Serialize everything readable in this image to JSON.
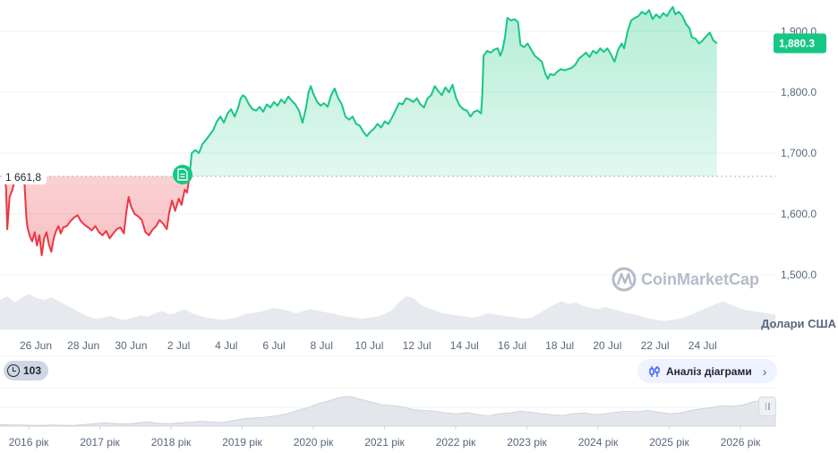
{
  "chart_data": {
    "type": "area",
    "baseline_value": 1661.8,
    "baseline_label": "1 661,8",
    "current_value": 1880.3,
    "current_label": "1,880.3",
    "ylim": [
      1480,
      1930
    ],
    "y_ticks": [
      1500,
      1600,
      1700,
      1800,
      1900
    ],
    "y_tick_labels": [
      "1,500.0",
      "1,600.0",
      "1,700.0",
      "1,800.0",
      "1,900.0"
    ],
    "x_ticks": [
      {
        "day": 0,
        "label": "26 Jun"
      },
      {
        "day": 2,
        "label": "28 Jun"
      },
      {
        "day": 4,
        "label": "30 Jun"
      },
      {
        "day": 6,
        "label": "2 Jul"
      },
      {
        "day": 8,
        "label": "4 Jul"
      },
      {
        "day": 10,
        "label": "6 Jul"
      },
      {
        "day": 12,
        "label": "8 Jul"
      },
      {
        "day": 14,
        "label": "10 Jul"
      },
      {
        "day": 16,
        "label": "12 Jul"
      },
      {
        "day": 18,
        "label": "14 Jul"
      },
      {
        "day": 20,
        "label": "16 Jul"
      },
      {
        "day": 22,
        "label": "18 Jul"
      },
      {
        "day": 24,
        "label": "20 Jul"
      },
      {
        "day": 26,
        "label": "22 Jul"
      },
      {
        "day": 28,
        "label": "24 Jul"
      }
    ],
    "xlim": [
      -1.35,
      28.6
    ],
    "series": [
      {
        "points": [
          [
            -1.35,
            1672
          ],
          [
            -1.25,
            1642
          ],
          [
            -1.2,
            1575
          ],
          [
            -1.1,
            1628
          ],
          [
            -1.0,
            1638
          ],
          [
            -0.9,
            1652
          ],
          [
            -0.8,
            1650
          ],
          [
            -0.7,
            1665
          ],
          [
            -0.6,
            1655
          ],
          [
            -0.5,
            1668
          ],
          [
            -0.4,
            1595
          ],
          [
            -0.35,
            1578
          ],
          [
            -0.25,
            1563
          ],
          [
            -0.15,
            1555
          ],
          [
            -0.05,
            1570
          ],
          [
            0.05,
            1548
          ],
          [
            0.15,
            1565
          ],
          [
            0.25,
            1532
          ],
          [
            0.35,
            1560
          ],
          [
            0.45,
            1570
          ],
          [
            0.55,
            1550
          ],
          [
            0.65,
            1538
          ],
          [
            0.75,
            1560
          ],
          [
            0.85,
            1572
          ],
          [
            0.95,
            1580
          ],
          [
            1.05,
            1568
          ],
          [
            1.15,
            1578
          ],
          [
            1.3,
            1580
          ],
          [
            1.45,
            1588
          ],
          [
            1.6,
            1594
          ],
          [
            1.75,
            1598
          ],
          [
            1.9,
            1588
          ],
          [
            2.05,
            1582
          ],
          [
            2.2,
            1578
          ],
          [
            2.35,
            1573
          ],
          [
            2.5,
            1580
          ],
          [
            2.65,
            1570
          ],
          [
            2.8,
            1565
          ],
          [
            2.95,
            1572
          ],
          [
            3.1,
            1560
          ],
          [
            3.25,
            1568
          ],
          [
            3.4,
            1575
          ],
          [
            3.55,
            1578
          ],
          [
            3.7,
            1568
          ],
          [
            3.8,
            1603
          ],
          [
            3.9,
            1628
          ],
          [
            4.0,
            1612
          ],
          [
            4.15,
            1600
          ],
          [
            4.3,
            1596
          ],
          [
            4.45,
            1590
          ],
          [
            4.6,
            1570
          ],
          [
            4.75,
            1565
          ],
          [
            4.9,
            1574
          ],
          [
            5.05,
            1580
          ],
          [
            5.2,
            1590
          ],
          [
            5.35,
            1584
          ],
          [
            5.5,
            1575
          ],
          [
            5.6,
            1602
          ],
          [
            5.72,
            1622
          ],
          [
            5.85,
            1605
          ],
          [
            6.0,
            1625
          ],
          [
            6.12,
            1615
          ],
          [
            6.25,
            1640
          ],
          [
            6.35,
            1635
          ],
          [
            6.45,
            1662
          ],
          [
            6.55,
            1700
          ],
          [
            6.7,
            1705
          ],
          [
            6.85,
            1700
          ],
          [
            7.0,
            1715
          ],
          [
            7.15,
            1722
          ],
          [
            7.3,
            1730
          ],
          [
            7.45,
            1738
          ],
          [
            7.6,
            1752
          ],
          [
            7.75,
            1760
          ],
          [
            7.9,
            1750
          ],
          [
            8.05,
            1765
          ],
          [
            8.2,
            1772
          ],
          [
            8.35,
            1760
          ],
          [
            8.5,
            1775
          ],
          [
            8.6,
            1790
          ],
          [
            8.7,
            1795
          ],
          [
            8.8,
            1792
          ],
          [
            8.95,
            1780
          ],
          [
            9.1,
            1772
          ],
          [
            9.25,
            1770
          ],
          [
            9.4,
            1776
          ],
          [
            9.55,
            1768
          ],
          [
            9.7,
            1780
          ],
          [
            9.85,
            1775
          ],
          [
            10.0,
            1784
          ],
          [
            10.15,
            1778
          ],
          [
            10.3,
            1788
          ],
          [
            10.45,
            1782
          ],
          [
            10.6,
            1793
          ],
          [
            10.75,
            1786
          ],
          [
            10.9,
            1780
          ],
          [
            11.05,
            1770
          ],
          [
            11.2,
            1750
          ],
          [
            11.35,
            1775
          ],
          [
            11.45,
            1800
          ],
          [
            11.55,
            1810
          ],
          [
            11.65,
            1798
          ],
          [
            11.8,
            1785
          ],
          [
            11.95,
            1778
          ],
          [
            12.1,
            1782
          ],
          [
            12.25,
            1776
          ],
          [
            12.4,
            1795
          ],
          [
            12.55,
            1806
          ],
          [
            12.7,
            1790
          ],
          [
            12.85,
            1780
          ],
          [
            13.0,
            1760
          ],
          [
            13.15,
            1755
          ],
          [
            13.3,
            1760
          ],
          [
            13.45,
            1748
          ],
          [
            13.6,
            1745
          ],
          [
            13.75,
            1735
          ],
          [
            13.9,
            1728
          ],
          [
            14.05,
            1735
          ],
          [
            14.2,
            1740
          ],
          [
            14.35,
            1748
          ],
          [
            14.5,
            1742
          ],
          [
            14.65,
            1752
          ],
          [
            14.8,
            1748
          ],
          [
            14.95,
            1758
          ],
          [
            15.1,
            1770
          ],
          [
            15.25,
            1782
          ],
          [
            15.4,
            1780
          ],
          [
            15.55,
            1790
          ],
          [
            15.7,
            1788
          ],
          [
            15.85,
            1784
          ],
          [
            16.0,
            1790
          ],
          [
            16.15,
            1780
          ],
          [
            16.3,
            1775
          ],
          [
            16.45,
            1790
          ],
          [
            16.6,
            1795
          ],
          [
            16.75,
            1810
          ],
          [
            16.9,
            1802
          ],
          [
            17.05,
            1795
          ],
          [
            17.2,
            1808
          ],
          [
            17.35,
            1800
          ],
          [
            17.5,
            1812
          ],
          [
            17.65,
            1790
          ],
          [
            17.8,
            1778
          ],
          [
            17.95,
            1772
          ],
          [
            18.1,
            1770
          ],
          [
            18.25,
            1760
          ],
          [
            18.4,
            1768
          ],
          [
            18.55,
            1770
          ],
          [
            18.7,
            1765
          ],
          [
            18.75,
            1800
          ],
          [
            18.8,
            1860
          ],
          [
            18.95,
            1868
          ],
          [
            19.1,
            1865
          ],
          [
            19.25,
            1870
          ],
          [
            19.4,
            1872
          ],
          [
            19.5,
            1860
          ],
          [
            19.6,
            1870
          ],
          [
            19.7,
            1890
          ],
          [
            19.8,
            1922
          ],
          [
            19.95,
            1918
          ],
          [
            20.1,
            1920
          ],
          [
            20.25,
            1915
          ],
          [
            20.35,
            1878
          ],
          [
            20.5,
            1874
          ],
          [
            20.65,
            1880
          ],
          [
            20.8,
            1870
          ],
          [
            20.95,
            1860
          ],
          [
            21.1,
            1855
          ],
          [
            21.25,
            1850
          ],
          [
            21.4,
            1830
          ],
          [
            21.5,
            1822
          ],
          [
            21.6,
            1830
          ],
          [
            21.75,
            1828
          ],
          [
            21.9,
            1834
          ],
          [
            22.05,
            1838
          ],
          [
            22.2,
            1836
          ],
          [
            22.35,
            1838
          ],
          [
            22.5,
            1840
          ],
          [
            22.65,
            1845
          ],
          [
            22.8,
            1855
          ],
          [
            22.95,
            1860
          ],
          [
            23.1,
            1865
          ],
          [
            23.25,
            1858
          ],
          [
            23.4,
            1868
          ],
          [
            23.55,
            1864
          ],
          [
            23.7,
            1872
          ],
          [
            23.85,
            1866
          ],
          [
            24.0,
            1872
          ],
          [
            24.15,
            1862
          ],
          [
            24.3,
            1850
          ],
          [
            24.45,
            1870
          ],
          [
            24.6,
            1880
          ],
          [
            24.7,
            1872
          ],
          [
            24.85,
            1900
          ],
          [
            25.0,
            1918
          ],
          [
            25.15,
            1922
          ],
          [
            25.3,
            1925
          ],
          [
            25.45,
            1932
          ],
          [
            25.6,
            1928
          ],
          [
            25.75,
            1935
          ],
          [
            25.9,
            1920
          ],
          [
            26.05,
            1928
          ],
          [
            26.2,
            1922
          ],
          [
            26.35,
            1930
          ],
          [
            26.5,
            1925
          ],
          [
            26.65,
            1935
          ],
          [
            26.75,
            1940
          ],
          [
            26.85,
            1928
          ],
          [
            27.0,
            1932
          ],
          [
            27.15,
            1925
          ],
          [
            27.3,
            1912
          ],
          [
            27.45,
            1905
          ],
          [
            27.55,
            1890
          ],
          [
            27.7,
            1888
          ],
          [
            27.85,
            1880
          ],
          [
            28.0,
            1885
          ],
          [
            28.15,
            1892
          ],
          [
            28.3,
            1898
          ],
          [
            28.45,
            1885
          ],
          [
            28.6,
            1880.3
          ]
        ]
      }
    ],
    "volume": [
      0.55,
      0.62,
      0.5,
      0.6,
      0.66,
      0.58,
      0.55,
      0.6,
      0.52,
      0.45,
      0.38,
      0.3,
      0.24,
      0.2,
      0.22,
      0.25,
      0.2,
      0.18,
      0.22,
      0.26,
      0.24,
      0.3,
      0.34,
      0.28,
      0.32,
      0.38,
      0.3,
      0.26,
      0.22,
      0.2,
      0.18,
      0.2,
      0.22,
      0.28,
      0.3,
      0.32,
      0.36,
      0.4,
      0.38,
      0.35,
      0.3,
      0.34,
      0.38,
      0.35,
      0.32,
      0.3,
      0.26,
      0.24,
      0.22,
      0.2,
      0.22,
      0.24,
      0.28,
      0.35,
      0.5,
      0.62,
      0.58,
      0.46,
      0.4,
      0.35,
      0.3,
      0.28,
      0.26,
      0.24,
      0.22,
      0.25,
      0.3,
      0.28,
      0.26,
      0.24,
      0.22,
      0.2,
      0.22,
      0.3,
      0.38,
      0.46,
      0.52,
      0.48,
      0.5,
      0.44,
      0.4,
      0.38,
      0.42,
      0.38,
      0.34,
      0.3,
      0.28,
      0.24,
      0.2,
      0.18,
      0.16,
      0.18,
      0.2,
      0.24,
      0.3,
      0.36,
      0.42,
      0.48,
      0.52,
      0.46,
      0.4,
      0.36,
      0.34,
      0.32,
      0.3,
      0.28
    ],
    "history_series": [
      0.04,
      0.03,
      0.03,
      0.02,
      0.02,
      0.03,
      0.02,
      0.02,
      0.04,
      0.06,
      0.08,
      0.06,
      0.05,
      0.08,
      0.1,
      0.07,
      0.06,
      0.08,
      0.1,
      0.12,
      0.1,
      0.09,
      0.14,
      0.18,
      0.2,
      0.22,
      0.25,
      0.3,
      0.38,
      0.45,
      0.55,
      0.62,
      0.7,
      0.72,
      0.65,
      0.58,
      0.52,
      0.5,
      0.46,
      0.4,
      0.38,
      0.36,
      0.32,
      0.3,
      0.33,
      0.28,
      0.25,
      0.3,
      0.32,
      0.36,
      0.34,
      0.3,
      0.28,
      0.26,
      0.3,
      0.32,
      0.28,
      0.3,
      0.34,
      0.36,
      0.35,
      0.38,
      0.34,
      0.3,
      0.32,
      0.38,
      0.42,
      0.45,
      0.5,
      0.48,
      0.52,
      0.6,
      0.62,
      0.66
    ],
    "history_ticks": [
      "2016 рік",
      "2017 рік",
      "2018 рік",
      "2019 рік",
      "2020 рік",
      "2021 рік",
      "2022 рік",
      "2023 рік",
      "2024 рік",
      "2025 рік",
      "2026 рік"
    ],
    "up_color": "#16c784",
    "down_color": "#ea3943",
    "grid": true
  },
  "watermark": "CoinMarketCap",
  "currency_label": "Долари США",
  "counter_value": "103",
  "analysis_button": "Аналіз діаграми",
  "icons": [
    "document-icon",
    "coinmarketcap-logo-icon",
    "history-icon",
    "candles-icon",
    "chevron-right-icon",
    "drag-handle-icon"
  ]
}
